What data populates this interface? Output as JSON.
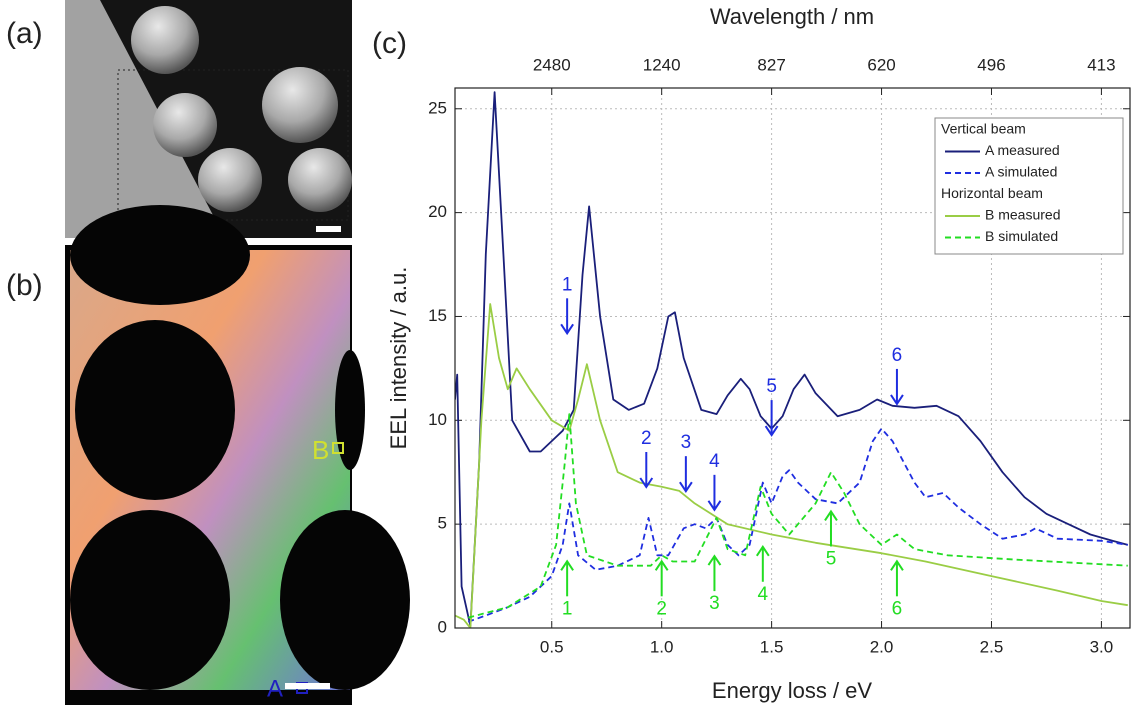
{
  "panels": {
    "a": "(a)",
    "b": "(b)",
    "c": "(c)",
    "marker_a": "A",
    "marker_b": "B"
  },
  "chart_data": {
    "type": "line",
    "x_label": "Energy loss / eV",
    "y_label": "EEL intensity / a.u.",
    "x2_label": "Wavelength / nm",
    "xlim": [
      0.06,
      3.13
    ],
    "ylim": [
      0,
      26
    ],
    "xticks": [
      0.5,
      {
        "value": 1.0,
        "label": "1.0"
      },
      1.5,
      {
        "value": 2.0,
        "label": "2.0"
      },
      2.5,
      {
        "value": 3.0,
        "label": "3.0"
      }
    ],
    "yticks": [
      0,
      5,
      10,
      15,
      20,
      25
    ],
    "x2ticks": [
      {
        "value": 0.5,
        "label": "2480"
      },
      {
        "value": 1.0,
        "label": "1240"
      },
      {
        "value": 1.5,
        "label": "827"
      },
      {
        "value": 2.0,
        "label": "620"
      },
      {
        "value": 2.5,
        "label": "496"
      },
      {
        "value": 3.0,
        "label": "413"
      }
    ],
    "grid": true,
    "legend": {
      "position": "upper right",
      "groups": [
        "Vertical beam",
        "Horizontal beam"
      ]
    },
    "series": [
      {
        "name": "A measured",
        "group": 0,
        "color": "#1a1f7a",
        "style": "solid",
        "x": [
          0.06,
          0.07,
          0.09,
          0.13,
          0.17,
          0.2,
          0.24,
          0.28,
          0.32,
          0.4,
          0.45,
          0.5,
          0.55,
          0.6,
          0.64,
          0.67,
          0.72,
          0.78,
          0.85,
          0.92,
          0.98,
          1.03,
          1.06,
          1.1,
          1.18,
          1.25,
          1.3,
          1.36,
          1.4,
          1.45,
          1.5,
          1.55,
          1.6,
          1.65,
          1.7,
          1.8,
          1.9,
          1.98,
          2.05,
          2.15,
          2.25,
          2.35,
          2.45,
          2.55,
          2.65,
          2.75,
          2.85,
          2.95,
          3.05,
          3.12
        ],
        "values": [
          11,
          12.2,
          2,
          0.1,
          8,
          18,
          25.8,
          18,
          10,
          8.5,
          8.5,
          9,
          9.5,
          10.5,
          17,
          20.3,
          15,
          11,
          10.5,
          10.8,
          12.5,
          15,
          15.2,
          13,
          10.5,
          10.3,
          11.2,
          12,
          11.5,
          10.2,
          9.6,
          10.2,
          11.5,
          12.2,
          11.3,
          10.2,
          10.5,
          11,
          10.7,
          10.6,
          10.7,
          10.2,
          9,
          7.5,
          6.3,
          5.5,
          5,
          4.5,
          4.2,
          4
        ]
      },
      {
        "name": "A simulated",
        "group": 0,
        "color": "#1f2ee0",
        "style": "dashed",
        "x": [
          0.12,
          0.2,
          0.3,
          0.4,
          0.5,
          0.55,
          0.58,
          0.62,
          0.7,
          0.8,
          0.9,
          0.94,
          0.98,
          1.03,
          1.1,
          1.15,
          1.2,
          1.25,
          1.3,
          1.35,
          1.4,
          1.46,
          1.5,
          1.55,
          1.58,
          1.62,
          1.7,
          1.8,
          1.9,
          1.96,
          2.0,
          2.05,
          2.15,
          2.2,
          2.28,
          2.35,
          2.45,
          2.55,
          2.65,
          2.7,
          2.8,
          3.0,
          3.12
        ],
        "values": [
          0.3,
          0.6,
          1,
          1.5,
          2.5,
          4,
          6,
          3.5,
          2.8,
          3,
          3.5,
          5.3,
          3.5,
          3.5,
          4.8,
          5,
          4.8,
          5.3,
          4,
          3.5,
          4,
          7,
          6,
          7.3,
          7.6,
          7,
          6.2,
          6,
          7,
          9,
          9.6,
          9,
          7,
          6.3,
          6.5,
          5.8,
          5,
          4.3,
          4.5,
          4.8,
          4.3,
          4.2,
          4
        ]
      },
      {
        "name": "B measured",
        "group": 1,
        "color": "#9acd45",
        "style": "solid",
        "x": [
          0.06,
          0.1,
          0.13,
          0.18,
          0.22,
          0.26,
          0.3,
          0.34,
          0.4,
          0.5,
          0.58,
          0.62,
          0.66,
          0.72,
          0.8,
          0.9,
          1.0,
          1.08,
          1.15,
          1.3,
          1.5,
          1.7,
          2.0,
          2.2,
          2.5,
          2.8,
          3.0,
          3.12
        ],
        "values": [
          0.6,
          0.4,
          0,
          10,
          15.6,
          13,
          11.5,
          12.5,
          11.5,
          10,
          9.5,
          11,
          12.7,
          10,
          7.5,
          7,
          6.8,
          6.6,
          6,
          5,
          4.5,
          4.1,
          3.6,
          3.2,
          2.5,
          1.8,
          1.3,
          1.1
        ]
      },
      {
        "name": "B simulated",
        "group": 1,
        "color": "#22dd22",
        "style": "dashed",
        "x": [
          0.12,
          0.3,
          0.45,
          0.52,
          0.56,
          0.58,
          0.61,
          0.66,
          0.8,
          0.95,
          1.0,
          1.05,
          1.15,
          1.25,
          1.3,
          1.38,
          1.45,
          1.5,
          1.58,
          1.7,
          1.77,
          1.83,
          1.9,
          2.0,
          2.07,
          2.15,
          2.3,
          2.6,
          3.12
        ],
        "values": [
          0.5,
          1,
          2,
          4,
          8,
          10.3,
          6,
          3.5,
          3,
          3,
          3.5,
          3.2,
          3.2,
          5.3,
          3.8,
          3.5,
          6.8,
          5.5,
          4.5,
          6,
          7.5,
          6.5,
          5,
          4,
          4.5,
          3.8,
          3.5,
          3.3,
          3
        ]
      }
    ],
    "annotations": [
      {
        "text": "1",
        "x": 0.57,
        "y": 16.5,
        "color": "#1f2ee0",
        "arrow": "down"
      },
      {
        "text": "2",
        "x": 0.93,
        "y": 9.1,
        "color": "#1f2ee0",
        "arrow": "down"
      },
      {
        "text": "3",
        "x": 1.11,
        "y": 8.9,
        "color": "#1f2ee0",
        "arrow": "down"
      },
      {
        "text": "4",
        "x": 1.24,
        "y": 8.0,
        "color": "#1f2ee0",
        "arrow": "down"
      },
      {
        "text": "5",
        "x": 1.5,
        "y": 11.6,
        "color": "#1f2ee0",
        "arrow": "down"
      },
      {
        "text": "6",
        "x": 2.07,
        "y": 13.1,
        "color": "#1f2ee0",
        "arrow": "down"
      },
      {
        "text": "1",
        "x": 0.57,
        "y": 0.9,
        "color": "#22dd22",
        "arrow": "up"
      },
      {
        "text": "2",
        "x": 1.0,
        "y": 0.9,
        "color": "#22dd22",
        "arrow": "up"
      },
      {
        "text": "3",
        "x": 1.24,
        "y": 1.15,
        "color": "#22dd22",
        "arrow": "up"
      },
      {
        "text": "4",
        "x": 1.46,
        "y": 1.6,
        "color": "#22dd22",
        "arrow": "up"
      },
      {
        "text": "5",
        "x": 1.77,
        "y": 3.3,
        "color": "#22dd22",
        "arrow": "up"
      },
      {
        "text": "6",
        "x": 2.07,
        "y": 0.9,
        "color": "#22dd22",
        "arrow": "up"
      }
    ]
  }
}
